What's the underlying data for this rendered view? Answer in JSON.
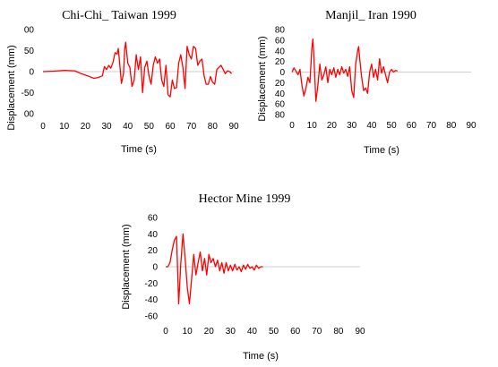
{
  "chart_data": [
    {
      "type": "line",
      "title": "Chi-Chi_ Taiwan 1999",
      "xlabel": "Time (s)",
      "ylabel": "Displacement (mm)",
      "x_ticks": [
        "0",
        "10",
        "20",
        "30",
        "40",
        "50",
        "60",
        "70",
        "80",
        "90"
      ],
      "y_ticks": [
        "00",
        "50",
        "0",
        "-50",
        "00"
      ],
      "xlim": [
        0,
        90
      ],
      "ylim": [
        -100,
        100
      ],
      "color": "#ff0000",
      "series": [
        {
          "x": [
            0,
            5,
            10,
            15,
            18,
            21,
            24,
            26,
            28,
            29,
            30,
            31,
            32,
            33,
            34,
            35,
            35.5,
            36,
            37,
            38,
            38.5,
            39,
            40,
            41,
            42,
            43,
            44,
            45,
            46,
            47,
            48,
            49,
            50,
            51,
            52,
            53,
            54,
            55,
            56,
            57,
            58,
            59,
            60,
            61,
            62,
            63,
            64,
            65,
            66,
            67,
            68,
            69,
            70,
            71,
            72,
            73,
            74,
            75,
            76,
            77,
            78,
            79,
            80,
            81,
            82,
            83,
            84,
            85,
            86,
            87,
            88,
            89
          ],
          "y": [
            0,
            1,
            3,
            2,
            -5,
            -10,
            -16,
            -14,
            -10,
            12,
            5,
            15,
            8,
            22,
            45,
            42,
            55,
            30,
            -28,
            -5,
            50,
            70,
            20,
            10,
            -35,
            -20,
            40,
            5,
            35,
            -50,
            10,
            25,
            -10,
            -30,
            15,
            35,
            20,
            30,
            -20,
            -35,
            15,
            -55,
            -60,
            -20,
            -40,
            -38,
            20,
            40,
            10,
            -40,
            60,
            40,
            30,
            60,
            55,
            15,
            25,
            30,
            -10,
            -30,
            -30,
            -12,
            -25,
            -30,
            5,
            10,
            15,
            5,
            -5,
            2,
            0,
            -5
          ]
        }
      ]
    },
    {
      "type": "line",
      "title": "Manjil_ Iran 1990",
      "xlabel": "Time (s)",
      "ylabel": "Displacement (mm)",
      "x_ticks": [
        "0",
        "10",
        "20",
        "30",
        "40",
        "50",
        "60",
        "70",
        "80",
        "90"
      ],
      "y_ticks": [
        "80",
        "60",
        "40",
        "20",
        "0",
        "20",
        "40",
        "60",
        "80"
      ],
      "xlim": [
        0,
        90
      ],
      "ylim": [
        -80,
        80
      ],
      "color": "#ff0000",
      "series": [
        {
          "x": [
            0,
            1,
            2,
            3,
            4,
            5,
            6,
            7,
            8,
            9,
            10,
            10.5,
            11,
            12,
            13,
            14,
            15,
            16,
            17,
            18,
            19,
            20,
            21,
            22,
            23,
            24,
            25,
            26,
            27,
            28,
            29,
            30,
            31,
            32,
            33,
            33.5,
            34,
            35,
            36,
            37,
            38,
            39,
            40,
            41,
            42,
            43,
            44,
            45,
            46,
            47,
            48,
            49,
            50,
            51,
            52,
            53
          ],
          "y": [
            0,
            8,
            2,
            -5,
            5,
            -25,
            -45,
            -30,
            -10,
            -20,
            45,
            62,
            30,
            -55,
            -25,
            15,
            -15,
            -5,
            10,
            -20,
            5,
            -5,
            8,
            -10,
            5,
            -5,
            10,
            -2,
            5,
            -8,
            10,
            -35,
            -48,
            15,
            40,
            48,
            25,
            -10,
            -35,
            -30,
            -40,
            0,
            15,
            -10,
            5,
            -15,
            25,
            -2,
            10,
            -5,
            -20,
            0,
            5,
            0,
            3,
            2
          ]
        }
      ]
    },
    {
      "type": "line",
      "title": "Hector Mine 1999",
      "xlabel": "Time (s)",
      "ylabel": "Displacement (mm)",
      "x_ticks": [
        "0",
        "10",
        "20",
        "30",
        "40",
        "50",
        "60",
        "70",
        "80",
        "90"
      ],
      "y_ticks": [
        "60",
        "40",
        "20",
        "0",
        "-20",
        "-40",
        "-60"
      ],
      "xlim": [
        0,
        90
      ],
      "ylim": [
        -60,
        60
      ],
      "color": "#ff0000",
      "series": [
        {
          "x": [
            0,
            1,
            2,
            3,
            4,
            5,
            6,
            7,
            8,
            9,
            10,
            11,
            12,
            13,
            14,
            15,
            16,
            17,
            18,
            19,
            20,
            21,
            22,
            23,
            24,
            25,
            26,
            27,
            28,
            29,
            30,
            31,
            32,
            33,
            34,
            35,
            36,
            37,
            38,
            39,
            40,
            41,
            42,
            43,
            44,
            45
          ],
          "y": [
            0,
            0,
            5,
            20,
            32,
            37,
            -45,
            5,
            40,
            10,
            -25,
            -45,
            -15,
            15,
            -10,
            5,
            18,
            -5,
            10,
            -10,
            15,
            5,
            10,
            0,
            8,
            -5,
            5,
            -8,
            5,
            -5,
            2,
            -5,
            3,
            -4,
            0,
            -6,
            2,
            -3,
            3,
            -2,
            0,
            -4,
            2,
            -2,
            0,
            0
          ]
        }
      ]
    }
  ]
}
